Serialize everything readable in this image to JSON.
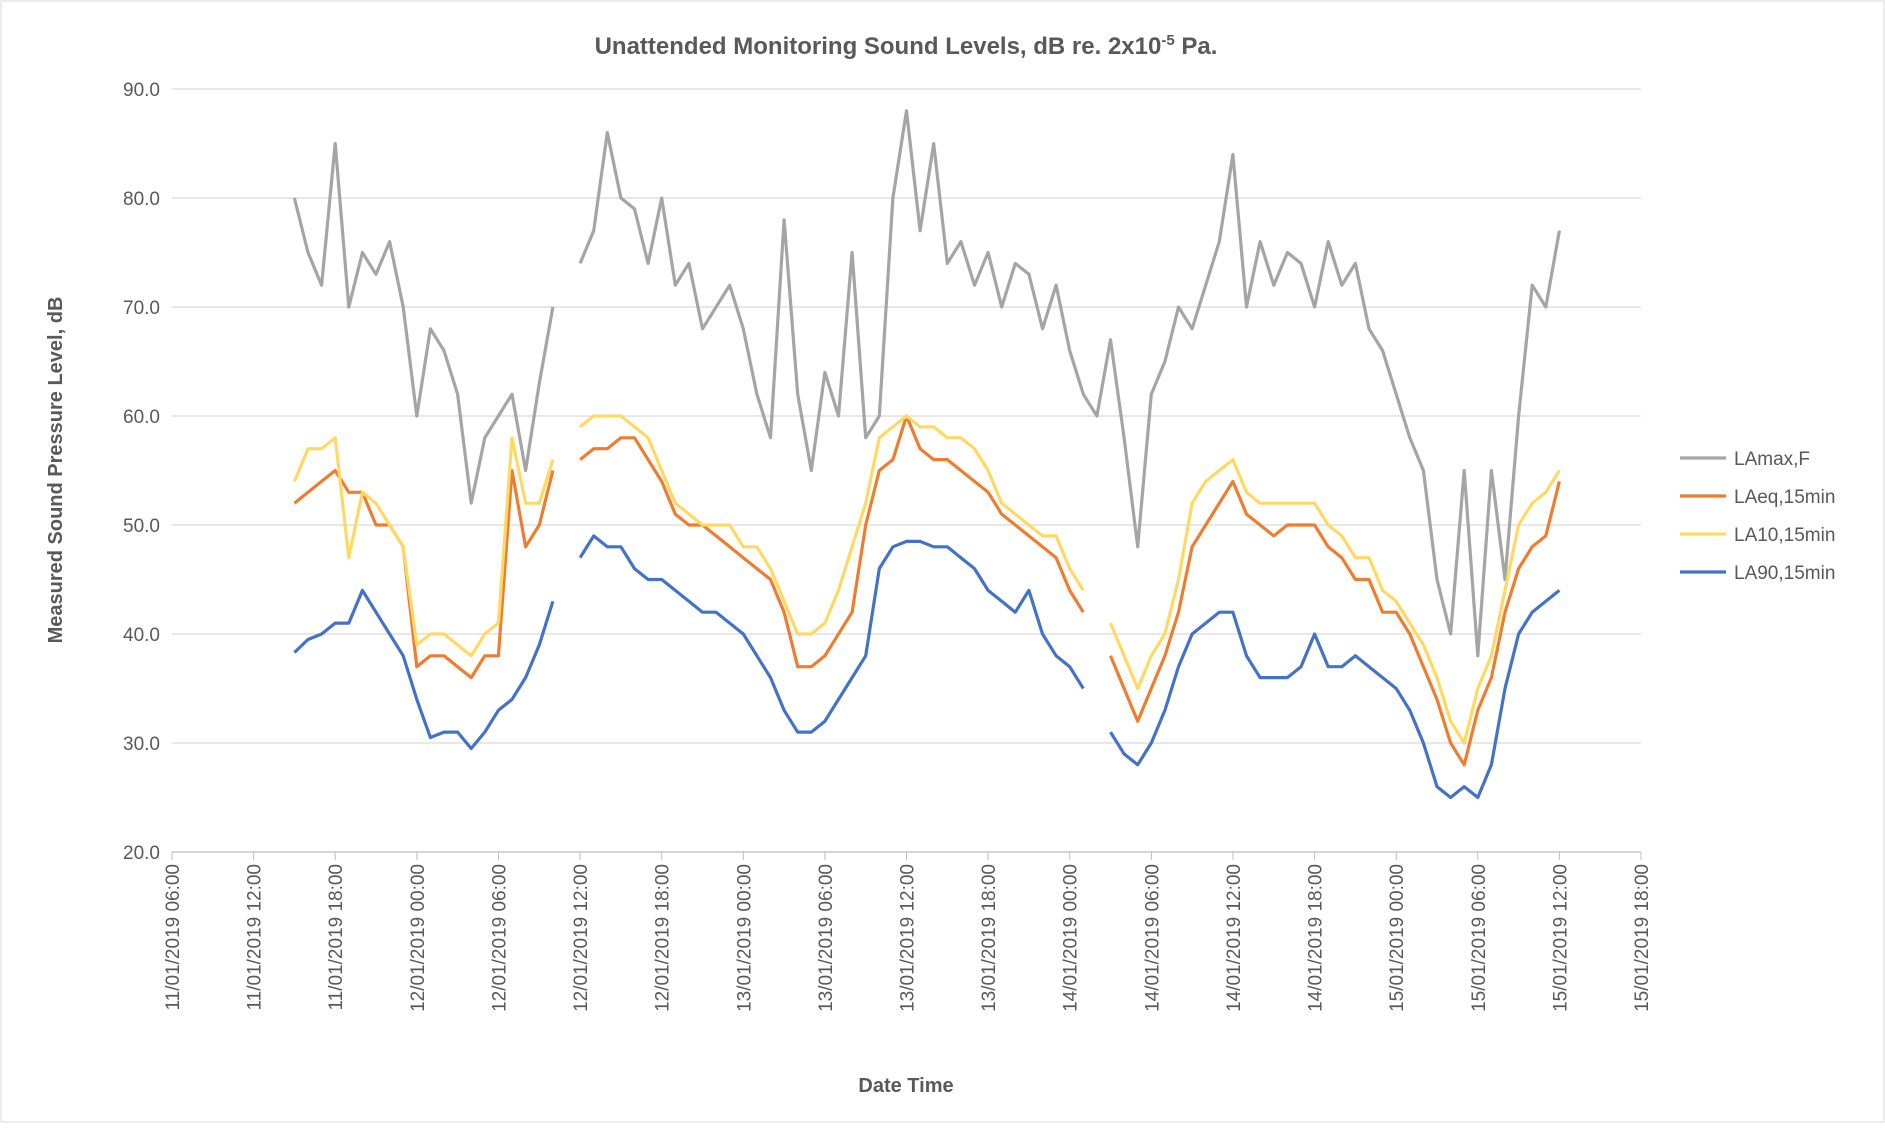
{
  "chart_data": {
    "type": "line",
    "title": "Unattended Monitoring Sound Levels, dB re. 2x10",
    "title_superscript": "-5",
    "title_suffix": " Pa.",
    "x_label": "Date Time",
    "y_label": "Measured Sound Pressure Level, dB",
    "x": [
      "11/01/2019 15:00",
      "11/01/2019 16:00",
      "11/01/2019 17:00",
      "11/01/2019 18:00",
      "11/01/2019 19:00",
      "11/01/2019 20:00",
      "11/01/2019 21:00",
      "11/01/2019 22:00",
      "11/01/2019 23:00",
      "12/01/2019 00:00",
      "12/01/2019 01:00",
      "12/01/2019 02:00",
      "12/01/2019 03:00",
      "12/01/2019 04:00",
      "12/01/2019 05:00",
      "12/01/2019 06:00",
      "12/01/2019 07:00",
      "12/01/2019 08:00",
      "12/01/2019 09:00",
      "12/01/2019 10:00",
      "12/01/2019 11:00",
      "12/01/2019 12:00",
      "12/01/2019 13:00",
      "12/01/2019 14:00",
      "12/01/2019 15:00",
      "12/01/2019 16:00",
      "12/01/2019 17:00",
      "12/01/2019 18:00",
      "12/01/2019 19:00",
      "12/01/2019 20:00",
      "12/01/2019 21:00",
      "12/01/2019 22:00",
      "12/01/2019 23:00",
      "13/01/2019 00:00",
      "13/01/2019 01:00",
      "13/01/2019 02:00",
      "13/01/2019 03:00",
      "13/01/2019 04:00",
      "13/01/2019 05:00",
      "13/01/2019 06:00",
      "13/01/2019 07:00",
      "13/01/2019 08:00",
      "13/01/2019 09:00",
      "13/01/2019 10:00",
      "13/01/2019 11:00",
      "13/01/2019 12:00",
      "13/01/2019 13:00",
      "13/01/2019 14:00",
      "13/01/2019 15:00",
      "13/01/2019 16:00",
      "13/01/2019 17:00",
      "13/01/2019 18:00",
      "13/01/2019 19:00",
      "13/01/2019 20:00",
      "13/01/2019 21:00",
      "13/01/2019 22:00",
      "13/01/2019 23:00",
      "14/01/2019 00:00",
      "14/01/2019 01:00",
      "14/01/2019 02:00",
      "14/01/2019 03:00",
      "14/01/2019 04:00",
      "14/01/2019 05:00",
      "14/01/2019 06:00",
      "14/01/2019 07:00",
      "14/01/2019 08:00",
      "14/01/2019 09:00",
      "14/01/2019 10:00",
      "14/01/2019 11:00",
      "14/01/2019 12:00",
      "14/01/2019 13:00",
      "14/01/2019 14:00",
      "14/01/2019 15:00",
      "14/01/2019 16:00",
      "14/01/2019 17:00",
      "14/01/2019 18:00",
      "14/01/2019 19:00",
      "14/01/2019 20:00",
      "14/01/2019 21:00",
      "14/01/2019 22:00",
      "14/01/2019 23:00",
      "15/01/2019 00:00",
      "15/01/2019 01:00",
      "15/01/2019 02:00",
      "15/01/2019 03:00",
      "15/01/2019 04:00",
      "15/01/2019 05:00",
      "15/01/2019 06:00",
      "15/01/2019 07:00",
      "15/01/2019 08:00",
      "15/01/2019 09:00",
      "15/01/2019 10:00",
      "15/01/2019 11:00",
      "15/01/2019 12:00"
    ],
    "series": [
      {
        "name": "LAmax,F",
        "color": "#a5a5a5",
        "values": [
          80,
          75,
          72,
          85,
          70,
          75,
          73,
          76,
          70,
          60,
          68,
          66,
          62,
          52,
          58,
          60,
          62,
          55,
          63,
          70,
          null,
          74,
          77,
          86,
          80,
          79,
          74,
          80,
          72,
          74,
          68,
          70,
          72,
          68,
          62,
          58,
          78,
          62,
          55,
          64,
          60,
          75,
          58,
          60,
          80,
          88,
          77,
          85,
          74,
          76,
          72,
          75,
          70,
          74,
          73,
          68,
          72,
          66,
          62,
          60,
          67,
          58,
          48,
          62,
          65,
          70,
          68,
          72,
          76,
          84,
          70,
          76,
          72,
          75,
          74,
          70,
          76,
          72,
          74,
          68,
          66,
          62,
          58,
          55,
          45,
          40,
          55,
          38,
          55,
          45,
          60,
          72,
          70,
          77
        ]
      },
      {
        "name": "LAeq,15min",
        "color": "#ed7d31",
        "values": [
          52,
          53,
          54,
          55,
          53,
          53,
          50,
          50,
          48,
          37,
          38,
          38,
          37,
          36,
          38,
          38,
          55,
          48,
          50,
          55,
          null,
          56,
          57,
          57,
          58,
          58,
          56,
          54,
          51,
          50,
          50,
          49,
          48,
          47,
          46,
          45,
          42,
          37,
          37,
          38,
          40,
          42,
          50,
          55,
          56,
          60,
          57,
          56,
          56,
          55,
          54,
          53,
          51,
          50,
          49,
          48,
          47,
          44,
          42,
          null,
          38,
          35,
          32,
          35,
          38,
          42,
          48,
          50,
          52,
          54,
          51,
          50,
          49,
          50,
          50,
          50,
          48,
          47,
          45,
          45,
          42,
          42,
          40,
          37,
          34,
          30,
          28,
          33,
          36,
          42,
          46,
          48,
          49,
          54
        ]
      },
      {
        "name": "LA10,15min",
        "color": "#ffd966",
        "values": [
          54,
          57,
          57,
          58,
          47,
          53,
          52,
          50,
          48,
          39,
          40,
          40,
          39,
          38,
          40,
          41,
          58,
          52,
          52,
          56,
          null,
          59,
          60,
          60,
          60,
          59,
          58,
          55,
          52,
          51,
          50,
          50,
          50,
          48,
          48,
          46,
          43,
          40,
          40,
          41,
          44,
          48,
          52,
          58,
          59,
          60,
          59,
          59,
          58,
          58,
          57,
          55,
          52,
          51,
          50,
          49,
          49,
          46,
          44,
          null,
          41,
          38,
          35,
          38,
          40,
          45,
          52,
          54,
          55,
          56,
          53,
          52,
          52,
          52,
          52,
          52,
          50,
          49,
          47,
          47,
          44,
          43,
          41,
          39,
          36,
          32,
          30,
          35,
          38,
          44,
          50,
          52,
          53,
          55
        ]
      },
      {
        "name": "LA90,15min",
        "color": "#4472c4",
        "values": [
          38.3,
          39.5,
          40,
          41,
          41,
          44,
          42,
          40,
          38,
          34,
          30.5,
          31,
          31,
          29.5,
          31,
          33,
          34,
          36,
          39,
          43,
          null,
          47,
          49,
          48,
          48,
          46,
          45,
          45,
          44,
          43,
          42,
          42,
          41,
          40,
          38,
          36,
          33,
          31,
          31,
          32,
          34,
          36,
          38,
          46,
          48,
          48.5,
          48.5,
          48,
          48,
          47,
          46,
          44,
          43,
          42,
          44,
          40,
          38,
          37,
          35,
          null,
          31,
          29,
          28,
          30,
          33,
          37,
          40,
          41,
          42,
          42,
          38,
          36,
          36,
          36,
          37,
          40,
          37,
          37,
          38,
          37,
          36,
          35,
          33,
          30,
          26,
          25,
          26,
          25,
          28,
          35,
          40,
          42,
          43,
          44
        ]
      }
    ],
    "xlim": [
      "11/01/2019 06:00",
      "15/01/2019 18:00"
    ],
    "xticks": [
      "11/01/2019 06:00",
      "11/01/2019 12:00",
      "11/01/2019 18:00",
      "12/01/2019 00:00",
      "12/01/2019 06:00",
      "12/01/2019 12:00",
      "12/01/2019 18:00",
      "13/01/2019 00:00",
      "13/01/2019 06:00",
      "13/01/2019 12:00",
      "13/01/2019 18:00",
      "14/01/2019 00:00",
      "14/01/2019 06:00",
      "14/01/2019 12:00",
      "14/01/2019 18:00",
      "15/01/2019 00:00",
      "15/01/2019 06:00",
      "15/01/2019 12:00",
      "15/01/2019 18:00"
    ],
    "ylim": [
      20,
      90
    ],
    "yticks": [
      {
        "value": 20,
        "label": "20.0"
      },
      {
        "value": 30,
        "label": "30.0"
      },
      {
        "value": 40,
        "label": "40.0"
      },
      {
        "value": 50,
        "label": "50.0"
      },
      {
        "value": 60,
        "label": "60.0"
      },
      {
        "value": 70,
        "label": "70.0"
      },
      {
        "value": 80,
        "label": "80.0"
      },
      {
        "value": 90,
        "label": "90.0"
      }
    ],
    "grid": true,
    "legend": "right"
  }
}
